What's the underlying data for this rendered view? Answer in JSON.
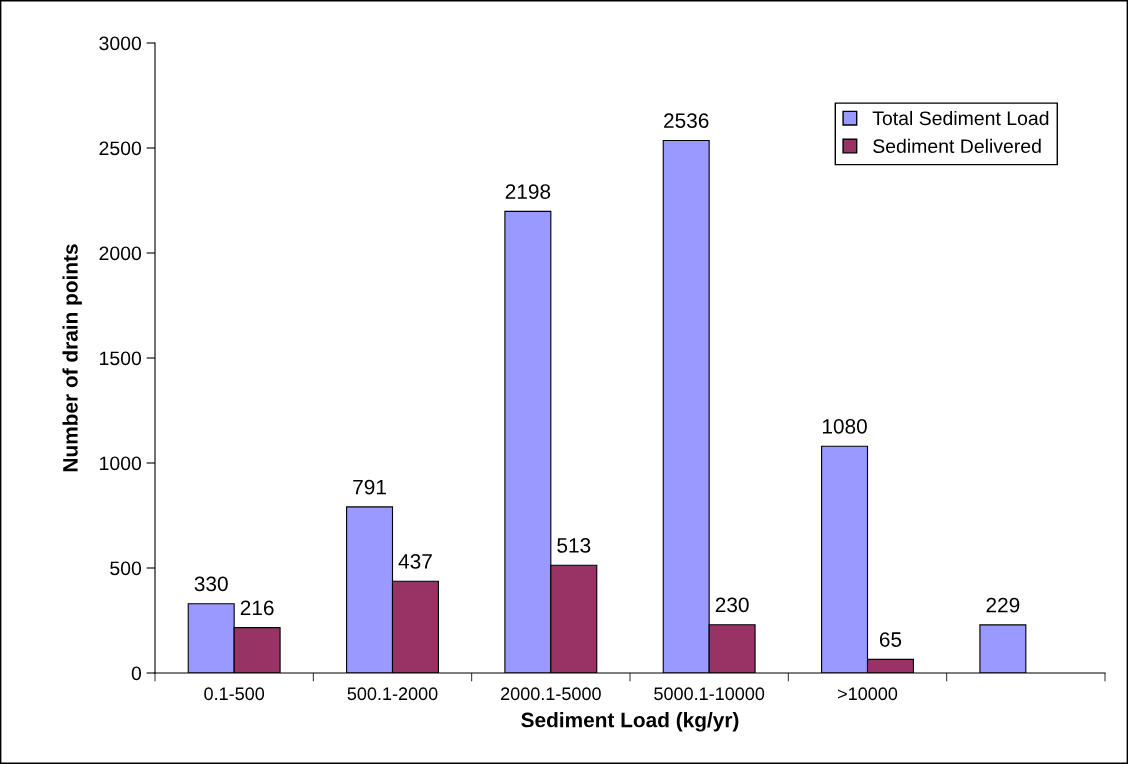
{
  "chart_data": {
    "type": "bar",
    "xlabel": "Sediment Load (kg/yr)",
    "ylabel": "Number of drain points",
    "categories": [
      "0.1-500",
      "500.1-2000",
      "2000.1-5000",
      "5000.1-10000",
      ">10000",
      null
    ],
    "series": [
      {
        "name": "Total Sediment Load",
        "color": "#9999ff",
        "values": [
          330,
          791,
          2198,
          2536,
          1080,
          229
        ]
      },
      {
        "name": "Sediment Delivered",
        "color": "#993366",
        "values": [
          216,
          437,
          513,
          230,
          65,
          null
        ]
      }
    ],
    "ylim": [
      0,
      3000
    ],
    "yticks": [
      0,
      500,
      1000,
      1500,
      2000,
      2500,
      3000
    ],
    "data_labels": true,
    "legend": "top right",
    "grid": false
  }
}
